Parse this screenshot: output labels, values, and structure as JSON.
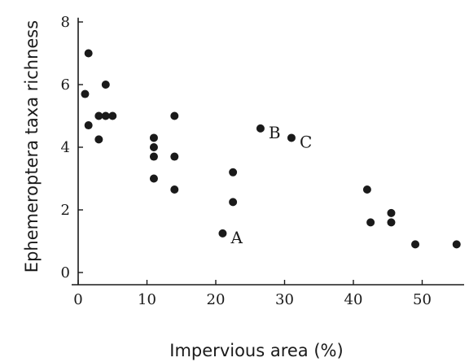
{
  "chart_data": {
    "type": "scatter",
    "title": "",
    "xlabel": "Impervious area (%)",
    "ylabel": "Ephemeroptera taxa richness",
    "xlim": [
      -1,
      56
    ],
    "ylim": [
      -0.3,
      8.5
    ],
    "xticks": [
      0,
      10,
      20,
      30,
      40,
      50
    ],
    "yticks": [
      0,
      2,
      4,
      6,
      8
    ],
    "grid": false,
    "points": [
      {
        "x": 1.5,
        "y": 7.0
      },
      {
        "x": 1.0,
        "y": 5.7
      },
      {
        "x": 4.0,
        "y": 6.0
      },
      {
        "x": 1.5,
        "y": 4.7
      },
      {
        "x": 3.0,
        "y": 5.0
      },
      {
        "x": 4.0,
        "y": 5.0
      },
      {
        "x": 5.0,
        "y": 5.0
      },
      {
        "x": 3.0,
        "y": 4.25
      },
      {
        "x": 11.0,
        "y": 4.3
      },
      {
        "x": 11.0,
        "y": 4.0
      },
      {
        "x": 11.0,
        "y": 3.7
      },
      {
        "x": 11.0,
        "y": 3.0
      },
      {
        "x": 14.0,
        "y": 5.0
      },
      {
        "x": 14.0,
        "y": 3.7
      },
      {
        "x": 14.0,
        "y": 2.65
      },
      {
        "x": 22.5,
        "y": 3.2
      },
      {
        "x": 22.5,
        "y": 2.25
      },
      {
        "x": 21.0,
        "y": 1.25
      },
      {
        "x": 26.5,
        "y": 4.6
      },
      {
        "x": 31.0,
        "y": 4.3
      },
      {
        "x": 42.0,
        "y": 2.65
      },
      {
        "x": 42.5,
        "y": 1.6
      },
      {
        "x": 45.5,
        "y": 1.9
      },
      {
        "x": 45.5,
        "y": 1.6
      },
      {
        "x": 49.0,
        "y": 0.9
      },
      {
        "x": 55.0,
        "y": 0.9
      }
    ],
    "annotations": [
      {
        "text": "A",
        "x": 21.0,
        "y": 1.25
      },
      {
        "text": "B",
        "x": 26.5,
        "y": 4.6
      },
      {
        "text": "C",
        "x": 31.0,
        "y": 4.3
      }
    ]
  }
}
